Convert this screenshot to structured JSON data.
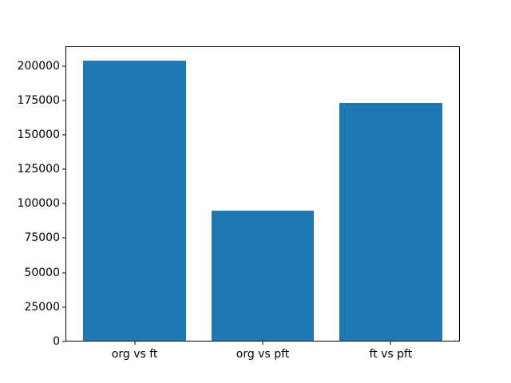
{
  "chart_data": {
    "type": "bar",
    "title": "",
    "xlabel": "",
    "ylabel": "",
    "categories": [
      "org vs ft",
      "org vs pft",
      "ft vs pft"
    ],
    "values": [
      204000,
      95000,
      173000
    ],
    "x_positions": [
      0,
      1,
      2
    ],
    "bar_width": 0.8,
    "bar_color": "#1f77b4",
    "xlim": [
      -0.54,
      2.54
    ],
    "ylim": [
      0,
      214200
    ],
    "yticks": [
      0,
      25000,
      50000,
      75000,
      100000,
      125000,
      150000,
      175000,
      200000
    ],
    "grid": false,
    "legend": null,
    "spine_color": "#000000",
    "background_color": "#ffffff"
  }
}
